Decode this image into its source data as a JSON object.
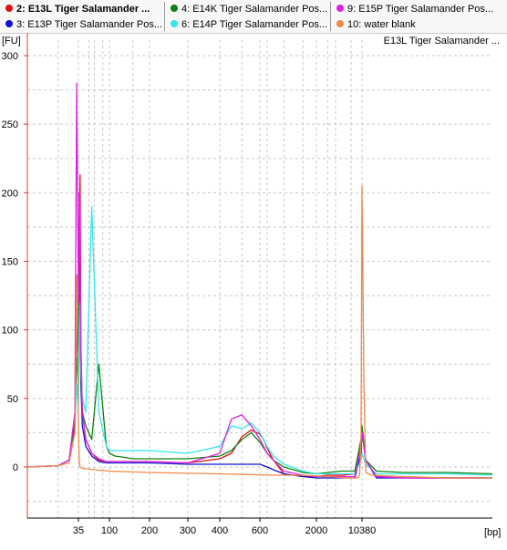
{
  "legend": [
    {
      "label": "2: E13L Tiger Salamander ...",
      "color": "#e01010",
      "bold": true
    },
    {
      "label": "3: E13P Tiger Salamander Pos...",
      "color": "#1010d0",
      "bold": false
    },
    {
      "label": "4: E14K Tiger Salamander Pos...",
      "color": "#108010",
      "bold": false
    },
    {
      "label": "6: E14P Tiger Salamander Pos...",
      "color": "#30e8e8",
      "bold": false
    },
    {
      "label": "9: E15P Tiger Salamander Pos...",
      "color": "#e020e0",
      "bold": false
    },
    {
      "label": "10: water blank",
      "color": "#f08848",
      "bold": false
    }
  ],
  "sample_title": "E13L Tiger Salamander ...",
  "chart_data": {
    "type": "line",
    "ylabel": "[FU]",
    "xlabel": "[bp]",
    "ylim": [
      -37,
      305
    ],
    "yticks": [
      0,
      50,
      100,
      150,
      200,
      250,
      300
    ],
    "xticks": [
      "35",
      "100",
      "200",
      "300",
      "400",
      "600",
      "2000",
      "10380"
    ],
    "xticks_positions": [
      35,
      100,
      200,
      300,
      400,
      600,
      2000,
      10380
    ],
    "grid": true,
    "series": [
      {
        "name": "2: E13L Tiger Salamander ...",
        "color": "#e01010",
        "x": [
          15,
          25,
          30,
          33,
          34,
          35,
          36,
          37,
          38,
          40,
          45,
          55,
          70,
          90,
          100,
          110,
          130,
          150,
          200,
          300,
          400,
          450,
          500,
          550,
          600,
          650,
          700,
          800,
          1000,
          1500,
          2000,
          3000,
          5000,
          8000,
          10000,
          10380,
          11000,
          13000,
          20000,
          40000,
          80000
        ],
        "y": [
          0,
          1,
          5,
          35,
          100,
          70,
          150,
          213,
          90,
          40,
          20,
          10,
          5,
          4,
          4,
          4,
          4,
          4,
          4,
          3,
          6,
          10,
          22,
          27,
          24,
          20,
          14,
          5,
          -5,
          -7,
          -7,
          -6,
          -6,
          -5,
          15,
          28,
          5,
          -7,
          -8,
          -8,
          -8
        ]
      },
      {
        "name": "3: E13P Tiger Salamander Pos...",
        "color": "#1010d0",
        "x": [
          15,
          25,
          30,
          33,
          34,
          35,
          36,
          37,
          38,
          40,
          45,
          55,
          70,
          90,
          100,
          110,
          130,
          150,
          200,
          300,
          400,
          450,
          500,
          550,
          600,
          650,
          700,
          800,
          1000,
          1500,
          2000,
          3000,
          5000,
          8000,
          10000,
          10380,
          11000,
          13000,
          20000,
          40000,
          80000
        ],
        "y": [
          0,
          1,
          5,
          30,
          140,
          60,
          130,
          110,
          60,
          30,
          15,
          8,
          4,
          3,
          3,
          3,
          3,
          3,
          3,
          2,
          2,
          2,
          2,
          2,
          2,
          1,
          0,
          -2,
          -5,
          -7,
          -8,
          -8,
          -8,
          -8,
          10,
          25,
          5,
          -8,
          -8,
          -8,
          -8
        ]
      },
      {
        "name": "4: E14K Tiger Salamander Pos...",
        "color": "#108010",
        "x": [
          15,
          25,
          30,
          33,
          34,
          35,
          36,
          37,
          38,
          40,
          45,
          55,
          70,
          90,
          100,
          110,
          130,
          150,
          200,
          300,
          400,
          450,
          500,
          550,
          600,
          650,
          700,
          800,
          1000,
          1500,
          2000,
          3000,
          5000,
          8000,
          10000,
          10380,
          11000,
          13000,
          20000,
          40000,
          80000
        ],
        "y": [
          0,
          1,
          5,
          30,
          80,
          60,
          120,
          145,
          70,
          40,
          30,
          20,
          75,
          15,
          10,
          8,
          7,
          6,
          6,
          6,
          8,
          12,
          20,
          25,
          18,
          14,
          10,
          5,
          0,
          -4,
          -5,
          -4,
          -3,
          -3,
          20,
          30,
          5,
          -3,
          -4,
          -4,
          -5
        ]
      },
      {
        "name": "6: E14P Tiger Salamander Pos...",
        "color": "#30e8e8",
        "x": [
          15,
          25,
          30,
          33,
          34,
          35,
          36,
          37,
          38,
          40,
          45,
          55,
          70,
          90,
          100,
          110,
          130,
          150,
          200,
          300,
          400,
          450,
          500,
          550,
          600,
          650,
          700,
          800,
          1000,
          1500,
          2000,
          3000,
          5000,
          8000,
          10000,
          10380,
          11000,
          13000,
          20000,
          40000,
          80000
        ],
        "y": [
          0,
          1,
          5,
          25,
          60,
          45,
          100,
          120,
          70,
          50,
          40,
          190,
          40,
          15,
          12,
          12,
          12,
          12,
          12,
          10,
          15,
          30,
          28,
          32,
          25,
          20,
          15,
          8,
          2,
          -3,
          -5,
          -5,
          -5,
          -5,
          5,
          10,
          2,
          -5,
          -5,
          -5,
          -6
        ]
      },
      {
        "name": "9: E15P Tiger Salamander Pos...",
        "color": "#e020e0",
        "x": [
          15,
          25,
          30,
          33,
          34,
          35,
          36,
          37,
          38,
          40,
          45,
          55,
          70,
          90,
          100,
          110,
          130,
          150,
          200,
          300,
          400,
          450,
          500,
          550,
          600,
          650,
          700,
          800,
          1000,
          1500,
          2000,
          3000,
          5000,
          8000,
          10000,
          10380,
          11000,
          13000,
          20000,
          40000,
          80000
        ],
        "y": [
          0,
          1,
          5,
          40,
          280,
          120,
          200,
          180,
          80,
          40,
          20,
          10,
          6,
          4,
          4,
          4,
          4,
          4,
          4,
          3,
          10,
          35,
          38,
          30,
          20,
          15,
          10,
          5,
          -3,
          -6,
          -7,
          -7,
          -7,
          -7,
          15,
          25,
          5,
          -7,
          -8,
          -8,
          -8
        ]
      },
      {
        "name": "10: water blank",
        "color": "#f08848",
        "x": [
          15,
          25,
          30,
          33,
          34,
          35,
          36,
          37,
          40,
          60,
          100,
          200,
          400,
          800,
          1500,
          3000,
          6000,
          8500,
          9000,
          9500,
          10000,
          10380,
          10700,
          11000,
          12000,
          20000,
          40000,
          80000
        ],
        "y": [
          0,
          1,
          3,
          25,
          140,
          30,
          5,
          0,
          -1,
          -2,
          -3,
          -4,
          -5,
          -6,
          -6,
          -7,
          -8,
          -8,
          -8,
          -6,
          20,
          205,
          60,
          -4,
          -6,
          -7,
          -8,
          -8
        ]
      }
    ]
  }
}
